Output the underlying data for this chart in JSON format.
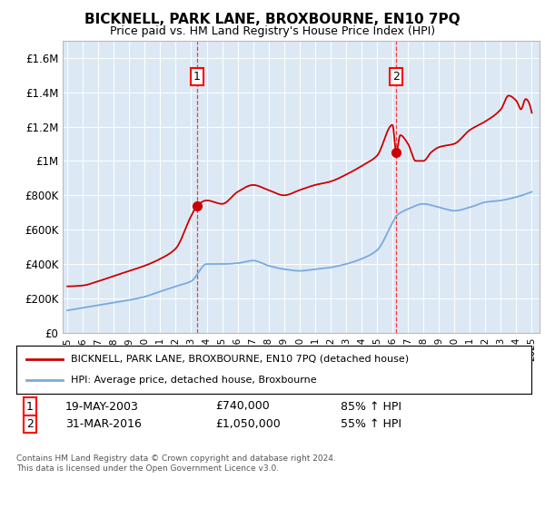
{
  "title": "BICKNELL, PARK LANE, BROXBOURNE, EN10 7PQ",
  "subtitle": "Price paid vs. HM Land Registry's House Price Index (HPI)",
  "plot_bg_color": "#dce9f5",
  "ylim": [
    0,
    1700000
  ],
  "yticks": [
    0,
    200000,
    400000,
    600000,
    800000,
    1000000,
    1200000,
    1400000,
    1600000
  ],
  "ytick_labels": [
    "£0",
    "£200K",
    "£400K",
    "£600K",
    "£800K",
    "£1M",
    "£1.2M",
    "£1.4M",
    "£1.6M"
  ],
  "xlim_start": 1994.7,
  "xlim_end": 2025.5,
  "xticks": [
    1995,
    1996,
    1997,
    1998,
    1999,
    2000,
    2001,
    2002,
    2003,
    2004,
    2005,
    2006,
    2007,
    2008,
    2009,
    2010,
    2011,
    2012,
    2013,
    2014,
    2015,
    2016,
    2017,
    2018,
    2019,
    2020,
    2021,
    2022,
    2023,
    2024,
    2025
  ],
  "sale1_x": 2003.38,
  "sale1_y": 740000,
  "sale2_x": 2016.25,
  "sale2_y": 1050000,
  "sale1_date": "19-MAY-2003",
  "sale1_price": "£740,000",
  "sale1_hpi": "85% ↑ HPI",
  "sale2_date": "31-MAR-2016",
  "sale2_price": "£1,050,000",
  "sale2_hpi": "55% ↑ HPI",
  "red_line_color": "#cc0000",
  "blue_line_color": "#7aaadd",
  "legend_label_red": "BICKNELL, PARK LANE, BROXBOURNE, EN10 7PQ (detached house)",
  "legend_label_blue": "HPI: Average price, detached house, Broxbourne",
  "footer": "Contains HM Land Registry data © Crown copyright and database right 2024.\nThis data is licensed under the Open Government Licence v3.0.",
  "blue_x": [
    1995,
    1996,
    1997,
    1998,
    1999,
    2000,
    2001,
    2002,
    2003,
    2004,
    2005,
    2006,
    2007,
    2008,
    2009,
    2010,
    2011,
    2012,
    2013,
    2014,
    2015,
    2016,
    2016.25,
    2017,
    2018,
    2019,
    2020,
    2021,
    2022,
    2023,
    2024,
    2025
  ],
  "blue_y": [
    130000,
    145000,
    160000,
    175000,
    190000,
    210000,
    240000,
    270000,
    300000,
    400000,
    400000,
    405000,
    420000,
    390000,
    370000,
    360000,
    370000,
    380000,
    400000,
    430000,
    480000,
    640000,
    680000,
    720000,
    750000,
    730000,
    710000,
    730000,
    760000,
    770000,
    790000,
    820000
  ],
  "red_x": [
    1995,
    1996,
    1997,
    1998,
    1999,
    2000,
    2001,
    2002,
    2003,
    2003.38,
    2004,
    2005,
    2006,
    2007,
    2008,
    2009,
    2010,
    2011,
    2012,
    2013,
    2014,
    2015,
    2016,
    2016.25,
    2016.5,
    2017,
    2017.5,
    2018,
    2018.5,
    2019,
    2020,
    2021,
    2022,
    2023,
    2023.5,
    2024,
    2024.3,
    2024.6,
    2025
  ],
  "red_y": [
    270000,
    275000,
    300000,
    330000,
    360000,
    390000,
    430000,
    490000,
    680000,
    740000,
    770000,
    750000,
    820000,
    860000,
    830000,
    800000,
    830000,
    860000,
    880000,
    920000,
    970000,
    1030000,
    1210000,
    1050000,
    1150000,
    1100000,
    1000000,
    1000000,
    1050000,
    1080000,
    1100000,
    1180000,
    1230000,
    1300000,
    1380000,
    1350000,
    1300000,
    1360000,
    1280000
  ]
}
